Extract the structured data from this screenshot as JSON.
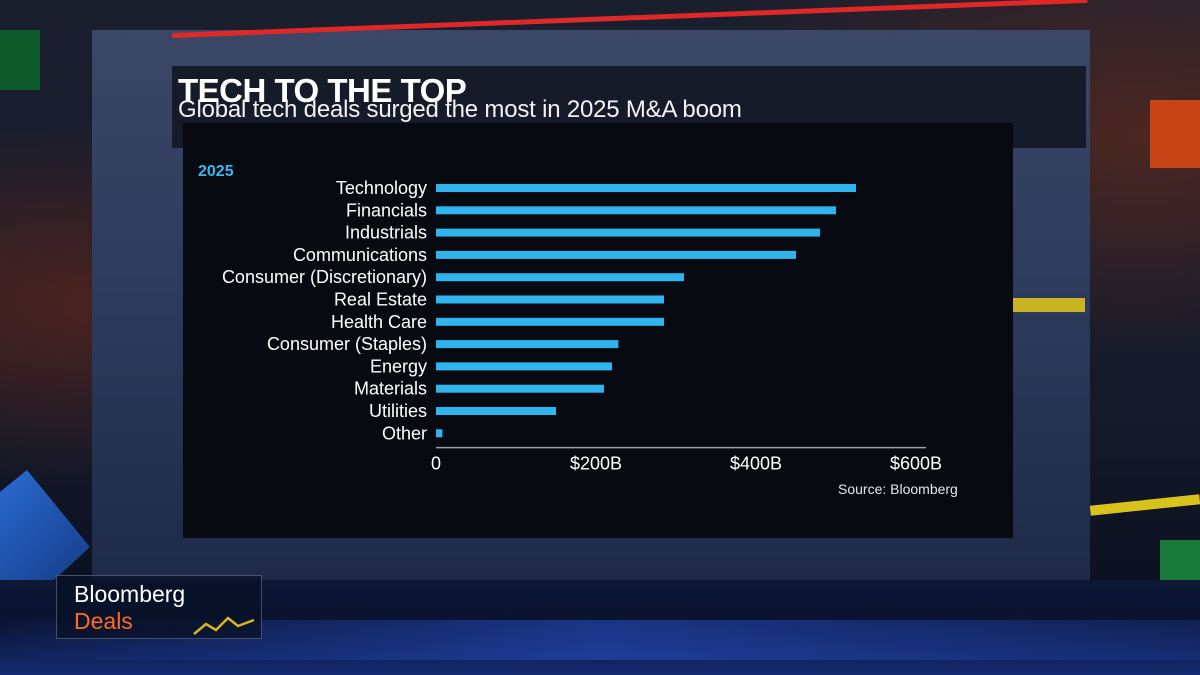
{
  "broadcast": {
    "title": "TECH TO THE TOP",
    "subtitle": "Global tech deals surged the most in 2025 M&A boom",
    "logo_brand": "Bloomberg",
    "logo_show": "Deals"
  },
  "colors": {
    "bar": "#2fb4ee",
    "accent_red": "#e02828",
    "logo_orange": "#ff6a2a",
    "year_label": "#38b8f0"
  },
  "chart_data": {
    "type": "bar",
    "orientation": "horizontal",
    "series_label": "2025",
    "categories": [
      "Technology",
      "Financials",
      "Industrials",
      "Communications",
      "Consumer (Discretionary)",
      "Real Estate",
      "Health Care",
      "Consumer (Staples)",
      "Energy",
      "Materials",
      "Utilities",
      "Other"
    ],
    "values": [
      525,
      500,
      480,
      450,
      310,
      285,
      285,
      228,
      220,
      210,
      150,
      8
    ],
    "unit": "$B",
    "xlim": [
      0,
      600
    ],
    "x_ticks": [
      0,
      200,
      400,
      600
    ],
    "x_tick_labels": [
      "0",
      "$200B",
      "$400B",
      "$600B"
    ],
    "source": "Source: Bloomberg"
  }
}
